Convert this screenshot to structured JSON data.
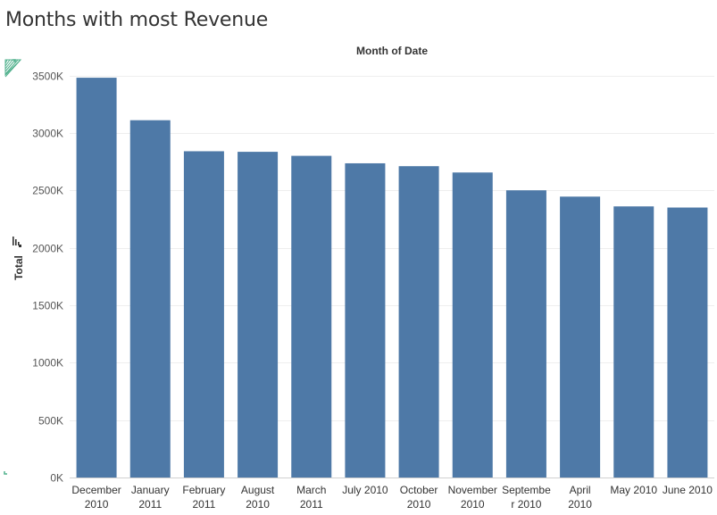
{
  "page_title": "Months with most Revenue",
  "chart_data": {
    "type": "bar",
    "title": "Months with most Revenue",
    "x_header": "Month of Date",
    "ylabel": "Total",
    "ylim": [
      0,
      3500000
    ],
    "yticks": [
      0,
      500000,
      1000000,
      1500000,
      2000000,
      2500000,
      3000000,
      3500000
    ],
    "ytick_labels": [
      "0K",
      "500K",
      "1000K",
      "1500K",
      "2000K",
      "2500K",
      "3000K",
      "3500K"
    ],
    "categories": [
      [
        "December",
        "2010"
      ],
      [
        "January",
        "2011"
      ],
      [
        "February",
        "2011"
      ],
      [
        "August",
        "2010"
      ],
      [
        "March",
        "2011"
      ],
      [
        "July 2010"
      ],
      [
        "October",
        "2010"
      ],
      [
        "November",
        "2010"
      ],
      [
        "Septembe",
        "r 2010"
      ],
      [
        "April",
        "2010"
      ],
      [
        "May 2010"
      ],
      [
        "June 2010"
      ]
    ],
    "values": [
      3480000,
      3110000,
      2840000,
      2835000,
      2800000,
      2735000,
      2710000,
      2655000,
      2500000,
      2445000,
      2360000,
      2350000
    ],
    "grid": true,
    "colors": {
      "bar": "#4e79a7",
      "accent_marks": "#4fb08c"
    },
    "icons": [
      "sort-descending-icon",
      "corner-hatch-icon"
    ]
  }
}
